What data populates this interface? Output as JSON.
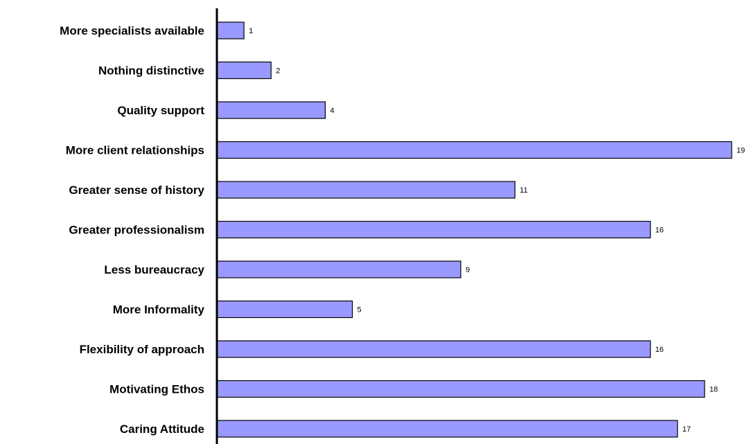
{
  "chart_data": {
    "type": "bar",
    "orientation": "horizontal",
    "categories": [
      "More specialists available",
      "Nothing distinctive",
      "Quality support",
      "More client relationships",
      "Greater sense of history",
      "Greater professionalism",
      "Less bureaucracy",
      "More Informality",
      "Flexibility of approach",
      "Motivating Ethos",
      "Caring Attitude"
    ],
    "values": [
      1,
      2,
      4,
      19,
      11,
      16,
      9,
      5,
      16,
      18,
      17
    ],
    "data_labels": [
      "1",
      "2",
      "4",
      "19",
      "11",
      "16",
      "9",
      "5",
      "16",
      "18",
      "17"
    ],
    "xlim": [
      0,
      19
    ],
    "grid": false,
    "legend": "none",
    "bar_color": "#9999ff",
    "bar_edge_color": "#000000"
  }
}
